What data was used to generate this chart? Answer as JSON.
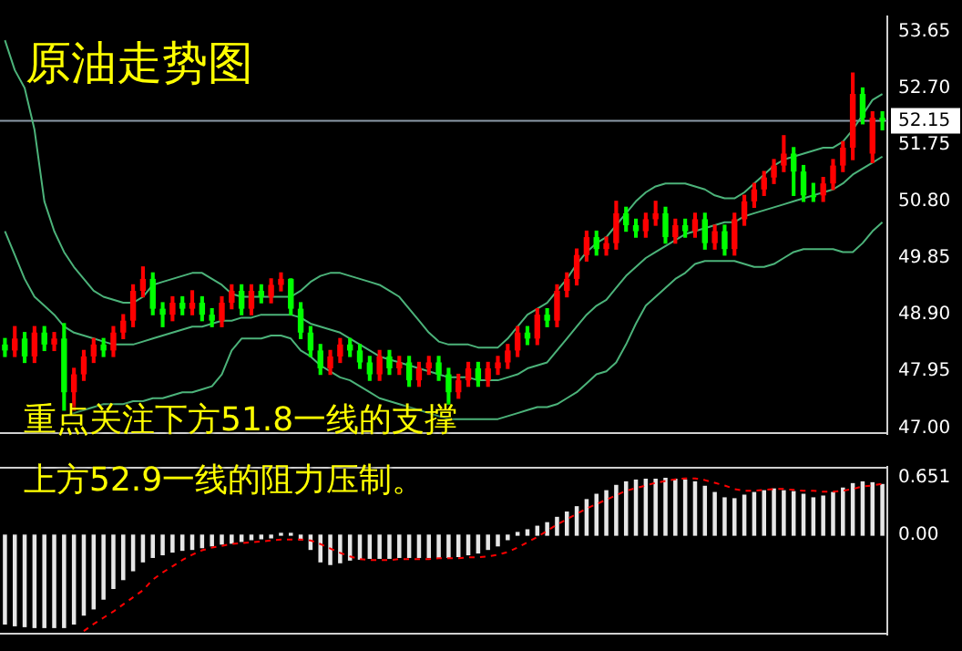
{
  "chart_data": [
    {
      "type": "candlestick",
      "title": "原油走势图",
      "annotations": [
        "重点关注下方51.8一线的支撑"
      ],
      "tick_labels": "y",
      "marker": "none",
      "categories": [
        null,
        null,
        null,
        null,
        null,
        null,
        null,
        null,
        null,
        null,
        null,
        null,
        null,
        null,
        null,
        null,
        null,
        null,
        null,
        null,
        null,
        null,
        null,
        null,
        null,
        null,
        null,
        null,
        null,
        null,
        null,
        null,
        null,
        null,
        null,
        null,
        null,
        null,
        null,
        null,
        null,
        null,
        null,
        null,
        null,
        null,
        null,
        null,
        null,
        null,
        null,
        null,
        null,
        null,
        null,
        null,
        null,
        null,
        null,
        null,
        null,
        null,
        null,
        null,
        null,
        null,
        null,
        null,
        null,
        null,
        null,
        null,
        null,
        null,
        null,
        null,
        null,
        null,
        null,
        null,
        null,
        null,
        null,
        null,
        null,
        null,
        null,
        null,
        null,
        null
      ],
      "ohlc": [
        [
          48.4,
          48.5,
          48.2,
          48.3
        ],
        [
          48.3,
          48.7,
          48.2,
          48.5
        ],
        [
          48.5,
          48.6,
          48.1,
          48.2
        ],
        [
          48.2,
          48.7,
          48.1,
          48.6
        ],
        [
          48.6,
          48.7,
          48.3,
          48.4
        ],
        [
          48.4,
          48.6,
          48.3,
          48.5
        ],
        [
          48.5,
          48.75,
          47.3,
          47.6
        ],
        [
          47.6,
          48.0,
          47.3,
          47.9
        ],
        [
          47.9,
          48.3,
          47.8,
          48.2
        ],
        [
          48.2,
          48.5,
          48.1,
          48.4
        ],
        [
          48.4,
          48.5,
          48.2,
          48.3
        ],
        [
          48.3,
          48.7,
          48.2,
          48.6
        ],
        [
          48.6,
          48.9,
          48.5,
          48.8
        ],
        [
          48.8,
          49.4,
          48.7,
          49.3
        ],
        [
          49.3,
          49.7,
          49.2,
          49.5
        ],
        [
          49.5,
          49.6,
          48.9,
          49.0
        ],
        [
          49.0,
          49.1,
          48.7,
          48.9
        ],
        [
          48.9,
          49.2,
          48.8,
          49.1
        ],
        [
          49.1,
          49.2,
          48.9,
          49.0
        ],
        [
          49.0,
          49.3,
          48.9,
          49.1
        ],
        [
          49.1,
          49.2,
          48.8,
          48.9
        ],
        [
          48.9,
          49.0,
          48.7,
          48.8
        ],
        [
          48.8,
          49.2,
          48.7,
          49.1
        ],
        [
          49.1,
          49.4,
          49.0,
          49.3
        ],
        [
          49.3,
          49.4,
          48.9,
          49.0
        ],
        [
          49.0,
          49.4,
          48.9,
          49.3
        ],
        [
          49.3,
          49.4,
          49.1,
          49.2
        ],
        [
          49.2,
          49.5,
          49.1,
          49.4
        ],
        [
          49.4,
          49.6,
          49.3,
          49.5
        ],
        [
          49.5,
          49.5,
          48.9,
          49.0
        ],
        [
          49.0,
          49.1,
          48.5,
          48.6
        ],
        [
          48.6,
          48.7,
          48.2,
          48.3
        ],
        [
          48.3,
          48.4,
          47.9,
          48.0
        ],
        [
          48.0,
          48.3,
          47.9,
          48.2
        ],
        [
          48.2,
          48.5,
          48.1,
          48.4
        ],
        [
          48.4,
          48.5,
          48.2,
          48.3
        ],
        [
          48.3,
          48.4,
          48.0,
          48.1
        ],
        [
          48.1,
          48.2,
          47.8,
          47.9
        ],
        [
          47.9,
          48.3,
          47.8,
          48.2
        ],
        [
          48.2,
          48.3,
          47.9,
          48.0
        ],
        [
          48.0,
          48.2,
          47.9,
          48.1
        ],
        [
          48.1,
          48.2,
          47.7,
          47.8
        ],
        [
          47.8,
          48.1,
          47.7,
          48.0
        ],
        [
          48.0,
          48.2,
          47.9,
          48.1
        ],
        [
          48.1,
          48.2,
          47.8,
          47.9
        ],
        [
          47.9,
          48.0,
          47.4,
          47.6
        ],
        [
          47.6,
          47.9,
          47.5,
          47.8
        ],
        [
          47.8,
          48.1,
          47.7,
          48.0
        ],
        [
          48.0,
          48.1,
          47.7,
          47.8
        ],
        [
          47.8,
          48.1,
          47.7,
          48.0
        ],
        [
          48.0,
          48.2,
          47.9,
          48.1
        ],
        [
          48.1,
          48.4,
          48.0,
          48.3
        ],
        [
          48.3,
          48.7,
          48.2,
          48.6
        ],
        [
          48.6,
          48.7,
          48.4,
          48.5
        ],
        [
          48.5,
          49.0,
          48.4,
          48.9
        ],
        [
          48.9,
          49.0,
          48.7,
          48.8
        ],
        [
          48.8,
          49.4,
          48.7,
          49.3
        ],
        [
          49.3,
          49.6,
          49.2,
          49.5
        ],
        [
          49.5,
          50.0,
          49.4,
          49.9
        ],
        [
          49.9,
          50.3,
          49.8,
          50.2
        ],
        [
          50.2,
          50.3,
          49.9,
          50.0
        ],
        [
          50.0,
          50.2,
          49.9,
          50.1
        ],
        [
          50.1,
          50.8,
          50.0,
          50.6
        ],
        [
          50.6,
          50.7,
          50.3,
          50.4
        ],
        [
          50.4,
          50.5,
          50.2,
          50.3
        ],
        [
          50.3,
          50.6,
          50.2,
          50.5
        ],
        [
          50.5,
          50.8,
          50.4,
          50.6
        ],
        [
          50.6,
          50.7,
          50.1,
          50.2
        ],
        [
          50.2,
          50.5,
          50.1,
          50.4
        ],
        [
          50.4,
          50.5,
          50.2,
          50.3
        ],
        [
          50.3,
          50.6,
          50.2,
          50.5
        ],
        [
          50.5,
          50.6,
          50.0,
          50.1
        ],
        [
          50.1,
          50.4,
          50.0,
          50.3
        ],
        [
          50.3,
          50.4,
          49.9,
          50.0
        ],
        [
          50.0,
          50.6,
          49.9,
          50.5
        ],
        [
          50.5,
          50.9,
          50.4,
          50.8
        ],
        [
          50.8,
          51.1,
          50.7,
          51.0
        ],
        [
          51.0,
          51.3,
          50.9,
          51.2
        ],
        [
          51.2,
          51.5,
          51.1,
          51.4
        ],
        [
          51.4,
          51.9,
          51.3,
          51.6
        ],
        [
          51.6,
          51.7,
          50.9,
          51.3
        ],
        [
          51.3,
          51.4,
          50.8,
          50.9
        ],
        [
          50.9,
          51.1,
          50.8,
          50.9
        ],
        [
          50.9,
          51.2,
          50.8,
          51.1
        ],
        [
          51.1,
          51.5,
          51.0,
          51.4
        ],
        [
          51.4,
          51.8,
          51.3,
          51.7
        ],
        [
          51.7,
          52.95,
          51.5,
          52.6
        ],
        [
          52.6,
          52.7,
          52.1,
          52.2
        ],
        [
          51.6,
          52.3,
          51.45,
          52.2
        ],
        [
          52.2,
          52.3,
          52.0,
          52.15
        ]
      ],
      "colors": [
        "#00ff00",
        "#ff0000",
        "#00ff00",
        "#ff0000",
        "#00ff00",
        "#ff0000",
        "#00ff00",
        "#ff0000",
        "#ff0000",
        "#ff0000",
        "#00ff00",
        "#ff0000",
        "#ff0000",
        "#ff0000",
        "#ff0000",
        "#00ff00",
        "#00ff00",
        "#ff0000",
        "#00ff00",
        "#ff0000",
        "#00ff00",
        "#00ff00",
        "#ff0000",
        "#ff0000",
        "#00ff00",
        "#ff0000",
        "#00ff00",
        "#ff0000",
        "#ff0000",
        "#00ff00",
        "#00ff00",
        "#00ff00",
        "#00ff00",
        "#ff0000",
        "#ff0000",
        "#00ff00",
        "#00ff00",
        "#00ff00",
        "#ff0000",
        "#00ff00",
        "#ff0000",
        "#00ff00",
        "#ff0000",
        "#ff0000",
        "#00ff00",
        "#00ff00",
        "#ff0000",
        "#ff0000",
        "#00ff00",
        "#ff0000",
        "#ff0000",
        "#ff0000",
        "#ff0000",
        "#00ff00",
        "#ff0000",
        "#00ff00",
        "#ff0000",
        "#ff0000",
        "#ff0000",
        "#ff0000",
        "#00ff00",
        "#ff0000",
        "#ff0000",
        "#00ff00",
        "#00ff00",
        "#ff0000",
        "#ff0000",
        "#00ff00",
        "#ff0000",
        "#00ff00",
        "#ff0000",
        "#00ff00",
        "#ff0000",
        "#00ff00",
        "#ff0000",
        "#ff0000",
        "#ff0000",
        "#ff0000",
        "#ff0000",
        "#ff0000",
        "#00ff00",
        "#00ff00",
        "#00ff00",
        "#ff0000",
        "#ff0000",
        "#ff0000",
        "#ff0000",
        "#00ff00",
        "#ff0000",
        "#00ff00"
      ],
      "series": [
        {
          "type": "line",
          "color": "#4cb37a",
          "values": [
            53.5,
            53.0,
            52.7,
            52.0,
            50.8,
            50.3,
            49.95,
            49.7,
            49.5,
            49.3,
            49.2,
            49.15,
            49.1,
            49.1,
            49.2,
            49.4,
            49.45,
            49.5,
            49.55,
            49.6,
            49.6,
            49.5,
            49.4,
            49.25,
            49.2,
            49.2,
            49.2,
            49.2,
            49.2,
            49.2,
            49.3,
            49.45,
            49.55,
            49.6,
            49.6,
            49.55,
            49.5,
            49.45,
            49.4,
            49.3,
            49.2,
            49.0,
            48.8,
            48.6,
            48.45,
            48.4,
            48.4,
            48.4,
            48.35,
            48.35,
            48.35,
            48.5,
            48.7,
            48.9,
            49.0,
            49.1,
            49.3,
            49.5,
            49.75,
            49.95,
            50.1,
            50.2,
            50.4,
            50.6,
            50.8,
            50.95,
            51.05,
            51.1,
            51.1,
            51.1,
            51.05,
            51.0,
            50.9,
            50.85,
            50.85,
            50.95,
            51.1,
            51.25,
            51.4,
            51.5,
            51.55,
            51.6,
            51.65,
            51.7,
            51.7,
            51.8,
            52.0,
            52.25,
            52.5,
            52.6
          ]
        },
        {
          "type": "line",
          "color": "#4cb37a",
          "values": [
            50.3,
            49.9,
            49.5,
            49.2,
            49.05,
            48.9,
            48.7,
            48.6,
            48.55,
            48.5,
            48.45,
            48.4,
            48.4,
            48.4,
            48.45,
            48.5,
            48.55,
            48.6,
            48.65,
            48.7,
            48.7,
            48.75,
            48.8,
            48.8,
            48.85,
            48.85,
            48.9,
            48.9,
            48.9,
            48.9,
            48.85,
            48.75,
            48.7,
            48.65,
            48.6,
            48.5,
            48.4,
            48.3,
            48.2,
            48.15,
            48.1,
            48.05,
            48.0,
            47.95,
            47.9,
            47.85,
            47.85,
            47.85,
            47.8,
            47.8,
            47.8,
            47.85,
            47.9,
            48.0,
            48.05,
            48.1,
            48.3,
            48.5,
            48.7,
            48.9,
            49.05,
            49.15,
            49.35,
            49.55,
            49.7,
            49.85,
            49.95,
            50.05,
            50.15,
            50.25,
            50.3,
            50.35,
            50.4,
            50.45,
            50.45,
            50.55,
            50.6,
            50.65,
            50.7,
            50.75,
            50.8,
            50.85,
            50.9,
            50.95,
            51.0,
            51.1,
            51.25,
            51.35,
            51.45,
            51.55
          ]
        },
        {
          "type": "line",
          "color": "#4cb37a",
          "values": [
            null,
            null,
            null,
            null,
            null,
            null,
            47.2,
            47.25,
            47.3,
            47.35,
            47.4,
            47.4,
            47.4,
            47.45,
            47.45,
            47.5,
            47.5,
            47.55,
            47.6,
            47.6,
            47.65,
            47.7,
            47.9,
            48.3,
            48.5,
            48.5,
            48.5,
            48.55,
            48.55,
            48.5,
            48.3,
            48.2,
            48.05,
            47.95,
            47.85,
            47.8,
            47.7,
            47.6,
            47.5,
            47.45,
            47.4,
            47.35,
            47.3,
            47.25,
            47.2,
            47.15,
            47.15,
            47.15,
            47.15,
            47.15,
            47.15,
            47.2,
            47.25,
            47.3,
            47.35,
            47.35,
            47.4,
            47.5,
            47.6,
            47.75,
            47.9,
            47.95,
            48.1,
            48.4,
            48.75,
            49.05,
            49.2,
            49.35,
            49.5,
            49.6,
            49.75,
            49.8,
            49.8,
            49.8,
            49.8,
            49.75,
            49.7,
            49.7,
            49.75,
            49.85,
            49.95,
            50.0,
            50.0,
            50.0,
            50.0,
            49.95,
            49.95,
            50.1,
            50.3,
            50.45
          ]
        }
      ],
      "ylim": [
        46.9,
        53.9
      ],
      "yticks": [
        {
          "value": 53.65,
          "label": "53.65"
        },
        {
          "value": 52.7,
          "label": "52.70"
        },
        {
          "value": 51.75,
          "label": "51.75"
        },
        {
          "value": 50.8,
          "label": "50.80"
        },
        {
          "value": 49.85,
          "label": "49.85"
        },
        {
          "value": 48.9,
          "label": "48.90"
        },
        {
          "value": 47.95,
          "label": "47.95"
        },
        {
          "value": 47,
          "label": "47.00"
        }
      ],
      "ref_lines": [
        {
          "axis": "y",
          "value": 52.15,
          "label": "52.15",
          "color": "#8c9aa8"
        }
      ]
    },
    {
      "type": "bar",
      "annotations": [
        "上方52.9一线的阻力压制。"
      ],
      "tick_labels": "y",
      "marker": "none",
      "categories": [
        null,
        null,
        null,
        null,
        null,
        null,
        null,
        null,
        null,
        null,
        null,
        null,
        null,
        null,
        null,
        null,
        null,
        null,
        null,
        null,
        null,
        null,
        null,
        null,
        null,
        null,
        null,
        null,
        null,
        null,
        null,
        null,
        null,
        null,
        null,
        null,
        null,
        null,
        null,
        null,
        null,
        null,
        null,
        null,
        null,
        null,
        null,
        null,
        null,
        null,
        null,
        null,
        null,
        null,
        null,
        null,
        null,
        null,
        null,
        null,
        null,
        null,
        null,
        null,
        null,
        null,
        null,
        null,
        null,
        null,
        null,
        null,
        null,
        null,
        null,
        null,
        null,
        null,
        null,
        null,
        null,
        null,
        null,
        null,
        null,
        null,
        null,
        null,
        null,
        null
      ],
      "series": [
        {
          "type": "bar",
          "color": "#e6e6e6",
          "values": [
            -1.0,
            -1.02,
            -1.03,
            -1.04,
            -1.04,
            -1.04,
            -1.04,
            -1.0,
            -0.9,
            -0.83,
            -0.72,
            -0.6,
            -0.5,
            -0.4,
            -0.3,
            -0.25,
            -0.22,
            -0.19,
            -0.17,
            -0.16,
            -0.14,
            -0.12,
            -0.1,
            -0.09,
            -0.07,
            -0.05,
            -0.04,
            -0.03,
            0.02,
            0.02,
            -0.05,
            -0.16,
            -0.3,
            -0.33,
            -0.31,
            -0.28,
            -0.27,
            -0.26,
            -0.26,
            -0.26,
            -0.25,
            -0.25,
            -0.25,
            -0.25,
            -0.25,
            -0.25,
            -0.24,
            -0.22,
            -0.2,
            -0.16,
            -0.12,
            -0.05,
            0.03,
            0.06,
            0.1,
            0.14,
            0.2,
            0.26,
            0.32,
            0.4,
            0.46,
            0.5,
            0.56,
            0.6,
            0.62,
            0.63,
            0.63,
            0.64,
            0.63,
            0.62,
            0.6,
            0.55,
            0.48,
            0.42,
            0.41,
            0.45,
            0.48,
            0.5,
            0.52,
            0.5,
            0.49,
            0.46,
            0.42,
            0.44,
            0.48,
            0.53,
            0.58,
            0.6,
            0.59,
            0.57
          ]
        },
        {
          "type": "line",
          "color": "#ff0000",
          "line_style": "dashed",
          "values": [
            null,
            null,
            null,
            null,
            null,
            null,
            null,
            null,
            -1.08,
            -1.0,
            -0.93,
            -0.86,
            -0.78,
            -0.7,
            -0.62,
            -0.5,
            -0.42,
            -0.35,
            -0.28,
            -0.22,
            -0.17,
            -0.14,
            -0.12,
            -0.1,
            -0.09,
            -0.08,
            -0.07,
            -0.06,
            -0.05,
            -0.05,
            -0.05,
            -0.06,
            -0.1,
            -0.15,
            -0.2,
            -0.24,
            -0.27,
            -0.28,
            -0.28,
            -0.28,
            -0.27,
            -0.27,
            -0.27,
            -0.27,
            -0.26,
            -0.26,
            -0.26,
            -0.25,
            -0.25,
            -0.24,
            -0.22,
            -0.19,
            -0.14,
            -0.08,
            -0.02,
            0.05,
            0.12,
            0.18,
            0.24,
            0.3,
            0.35,
            0.4,
            0.45,
            0.5,
            0.53,
            0.56,
            0.59,
            0.61,
            0.63,
            0.64,
            0.64,
            0.62,
            0.59,
            0.56,
            0.52,
            0.5,
            0.5,
            0.51,
            0.52,
            0.52,
            0.51,
            0.5,
            0.5,
            0.49,
            0.49,
            0.5,
            0.52,
            0.55,
            0.56,
            0.58
          ]
        }
      ],
      "ylim": [
        -1.12,
        0.77
      ],
      "yticks": [
        0.651,
        {
          "value": 0,
          "label": "0.00"
        }
      ]
    }
  ]
}
